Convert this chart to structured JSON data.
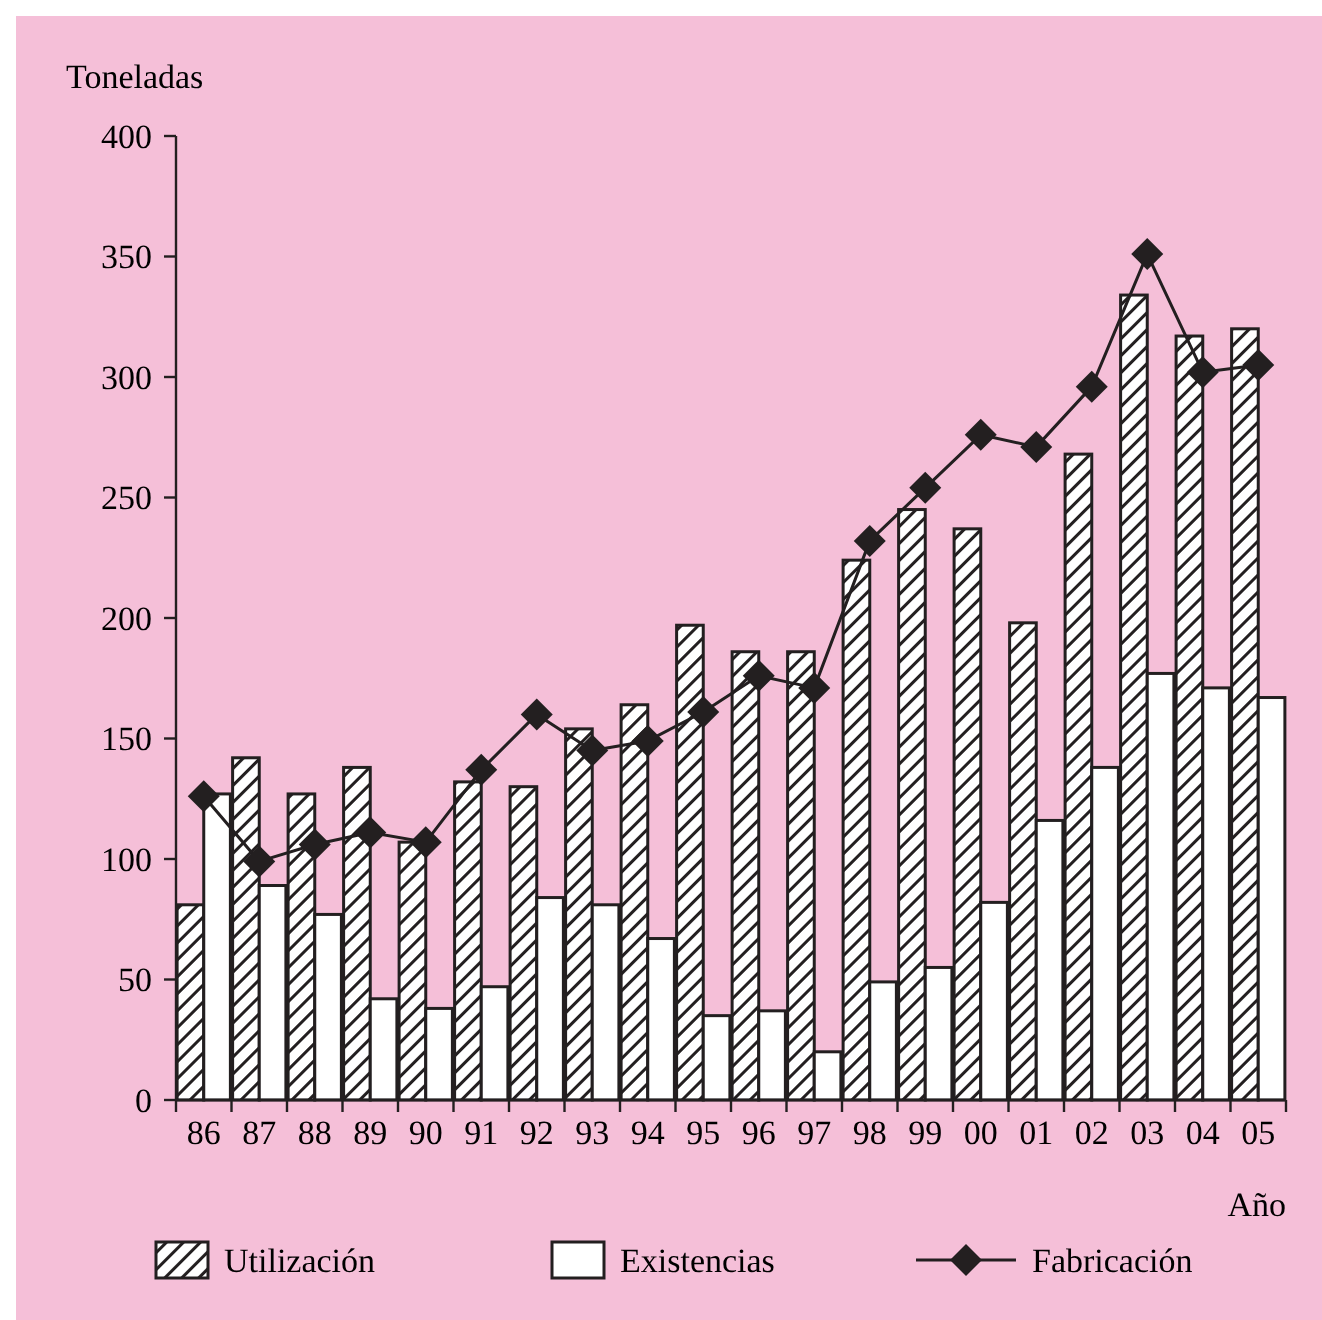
{
  "chart_data": {
    "type": "bar",
    "ylabel": "Toneladas",
    "xlabel": "Año",
    "categories": [
      "86",
      "87",
      "88",
      "89",
      "90",
      "91",
      "92",
      "93",
      "94",
      "95",
      "96",
      "97",
      "98",
      "99",
      "00",
      "01",
      "02",
      "03",
      "04",
      "05"
    ],
    "series": [
      {
        "name": "Utilización",
        "color": "#231f20",
        "values": [
          81,
          142,
          127,
          138,
          107,
          132,
          130,
          154,
          164,
          197,
          186,
          186,
          224,
          245,
          237,
          198,
          268,
          334,
          317,
          320
        ]
      },
      {
        "name": "Existencias",
        "color": "#ffffff",
        "values": [
          127,
          89,
          77,
          42,
          38,
          47,
          84,
          81,
          67,
          35,
          37,
          20,
          49,
          55,
          82,
          116,
          138,
          177,
          171,
          167
        ]
      },
      {
        "name": "Fabricación",
        "type": "line",
        "color": "#231f20",
        "values": [
          126,
          99,
          106,
          111,
          107,
          137,
          160,
          145,
          149,
          161,
          176,
          171,
          232,
          254,
          276,
          271,
          296,
          351,
          302,
          305
        ]
      }
    ],
    "ylim": [
      0,
      400
    ],
    "yticks": [
      0,
      50,
      100,
      150,
      200,
      250,
      300,
      350,
      400
    ],
    "grid": false,
    "legend": "bottom",
    "marker": "diamond",
    "line_style": "solid"
  }
}
